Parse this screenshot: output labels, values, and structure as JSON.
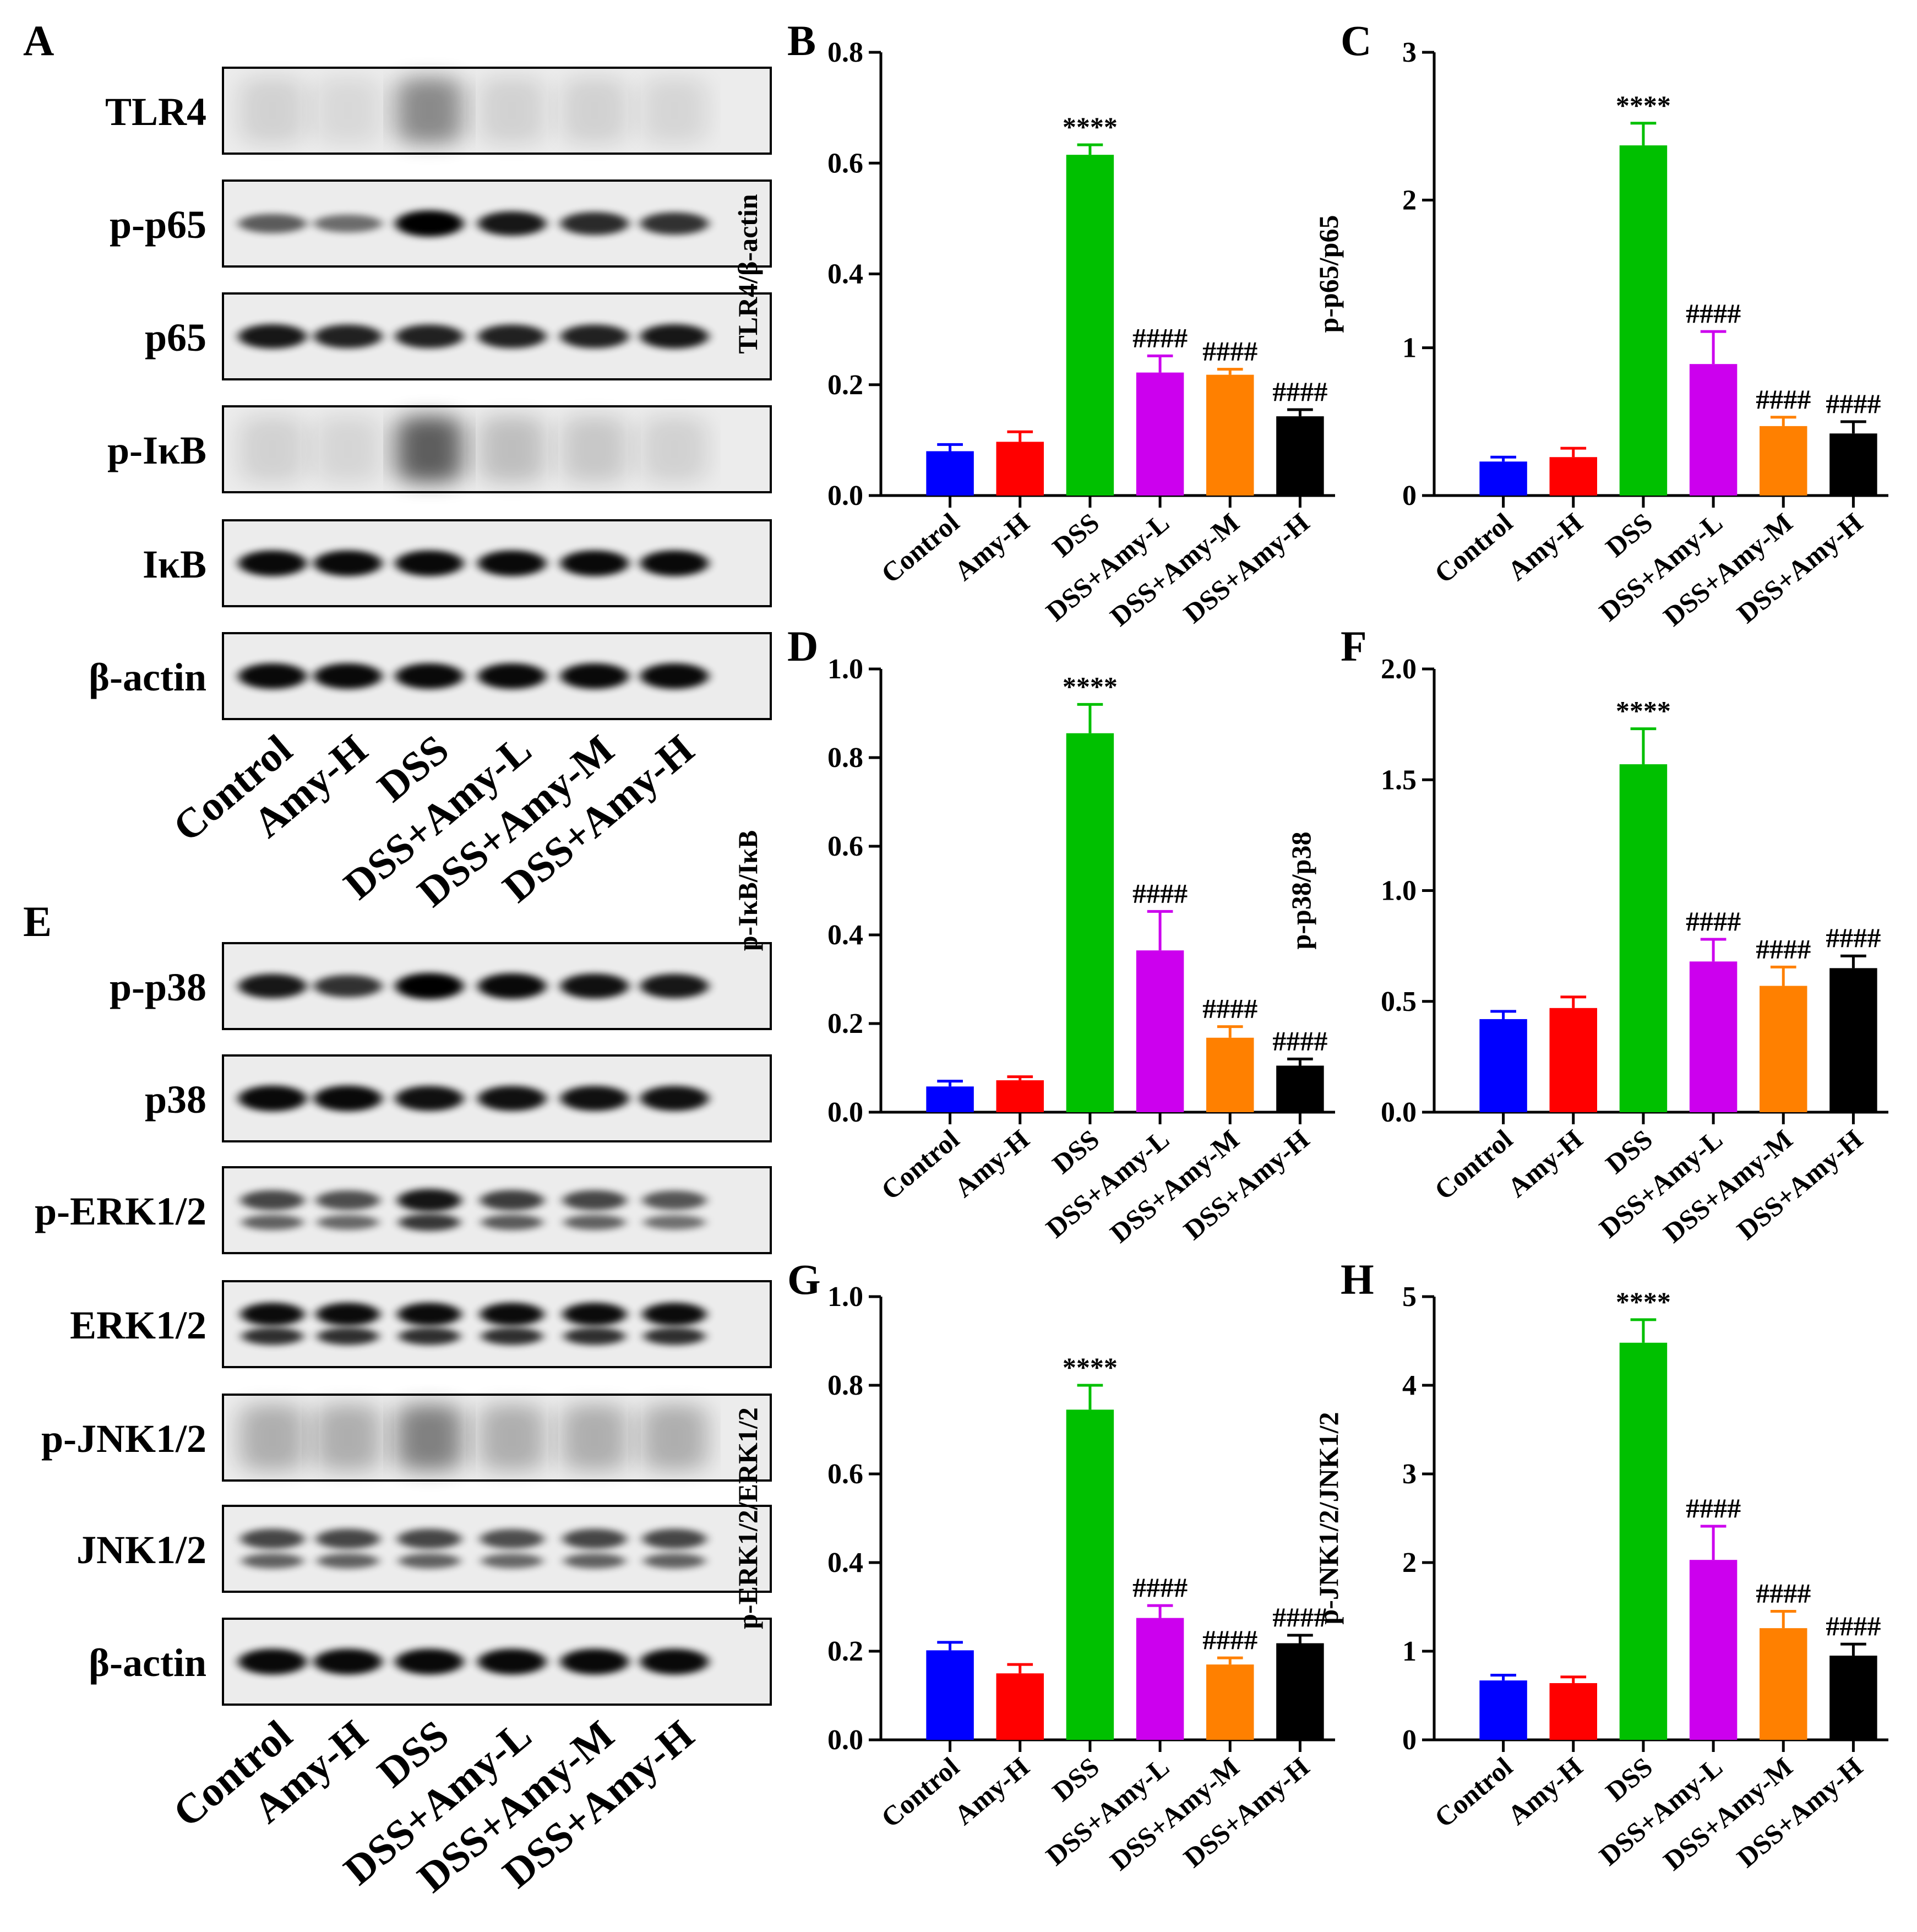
{
  "figure": {
    "groups": [
      "Control",
      "Amy-H",
      "DSS",
      "DSS+Amy-L",
      "DSS+Amy-M",
      "DSS+Amy-H"
    ],
    "colors": [
      "#0000ff",
      "#ff0000",
      "#00c000",
      "#cc00ee",
      "#ff8000",
      "#000000"
    ],
    "panel_letters": {
      "blot1": "A",
      "blot2": "E"
    },
    "blots": [
      {
        "letter": "A",
        "rows": [
          {
            "label": "TLR4",
            "style": "faint"
          },
          {
            "label": "p-p65",
            "style": "single"
          },
          {
            "label": "p65",
            "style": "single"
          },
          {
            "label": "p-IκB",
            "style": "faint"
          },
          {
            "label": "IκB",
            "style": "single"
          },
          {
            "label": "β-actin",
            "style": "single"
          }
        ],
        "intensity": [
          [
            0.15,
            0.1,
            0.55,
            0.15,
            0.15,
            0.12
          ],
          [
            0.45,
            0.35,
            1.0,
            0.85,
            0.75,
            0.7
          ],
          [
            0.85,
            0.8,
            0.8,
            0.8,
            0.8,
            0.85
          ],
          [
            0.15,
            0.12,
            0.8,
            0.25,
            0.2,
            0.15
          ],
          [
            0.95,
            0.95,
            0.95,
            0.95,
            0.95,
            0.95
          ],
          [
            0.95,
            0.95,
            0.95,
            0.95,
            0.95,
            0.95
          ]
        ]
      },
      {
        "letter": "E",
        "rows": [
          {
            "label": "p-p38",
            "style": "single"
          },
          {
            "label": "p38",
            "style": "single"
          },
          {
            "label": "p-ERK1/2",
            "style": "double"
          },
          {
            "label": "ERK1/2",
            "style": "double"
          },
          {
            "label": "p-JNK1/2",
            "style": "faint"
          },
          {
            "label": "JNK1/2",
            "style": "double"
          },
          {
            "label": "β-actin",
            "style": "single"
          }
        ],
        "intensity": [
          [
            0.85,
            0.7,
            1.0,
            0.95,
            0.9,
            0.85
          ],
          [
            0.95,
            0.95,
            0.9,
            0.9,
            0.9,
            0.9
          ],
          [
            0.65,
            0.6,
            0.95,
            0.7,
            0.65,
            0.55
          ],
          [
            1.0,
            1.0,
            1.0,
            1.0,
            1.0,
            1.0
          ],
          [
            0.35,
            0.35,
            0.6,
            0.35,
            0.35,
            0.35
          ],
          [
            0.65,
            0.65,
            0.65,
            0.6,
            0.65,
            0.65
          ],
          [
            0.95,
            0.95,
            0.95,
            0.95,
            0.95,
            0.95
          ]
        ]
      }
    ]
  },
  "chart_data": [
    {
      "panel": "B",
      "type": "bar",
      "ylabel": "TLR4/β-actin",
      "ylim": [
        0,
        0.8
      ],
      "yticks": [
        "0.0",
        "0.2",
        "0.4",
        "0.6",
        "0.8"
      ],
      "categories": [
        "Control",
        "Amy-H",
        "DSS",
        "DSS+Amy-L",
        "DSS+Amy-M",
        "DSS+Amy-H"
      ],
      "values": [
        0.08,
        0.097,
        0.615,
        0.222,
        0.218,
        0.143
      ],
      "errors": [
        0.012,
        0.018,
        0.018,
        0.03,
        0.01,
        0.012
      ],
      "annotations": [
        "",
        "",
        "****",
        "####",
        "####",
        "####"
      ]
    },
    {
      "panel": "C",
      "type": "bar",
      "ylabel": "p-p65/p65",
      "ylim": [
        0,
        3
      ],
      "yticks": [
        "0",
        "1",
        "2",
        "3"
      ],
      "categories": [
        "Control",
        "Amy-H",
        "DSS",
        "DSS+Amy-L",
        "DSS+Amy-M",
        "DSS+Amy-H"
      ],
      "values": [
        0.23,
        0.26,
        2.37,
        0.89,
        0.47,
        0.42
      ],
      "errors": [
        0.03,
        0.06,
        0.15,
        0.22,
        0.06,
        0.08
      ],
      "annotations": [
        "",
        "",
        "****",
        "####",
        "####",
        "####"
      ]
    },
    {
      "panel": "D",
      "type": "bar",
      "ylabel": "p-IκB/IκB",
      "ylim": [
        0,
        1.0
      ],
      "yticks": [
        "0.0",
        "0.2",
        "0.4",
        "0.6",
        "0.8",
        "1.0"
      ],
      "categories": [
        "Control",
        "Amy-H",
        "DSS",
        "DSS+Amy-L",
        "DSS+Amy-M",
        "DSS+Amy-H"
      ],
      "values": [
        0.058,
        0.072,
        0.855,
        0.365,
        0.168,
        0.105
      ],
      "errors": [
        0.012,
        0.008,
        0.065,
        0.088,
        0.025,
        0.015
      ],
      "annotations": [
        "",
        "",
        "****",
        "####",
        "####",
        "####"
      ]
    },
    {
      "panel": "F",
      "type": "bar",
      "ylabel": "p-p38/p38",
      "ylim": [
        0,
        2.0
      ],
      "yticks": [
        "0.0",
        "0.5",
        "1.0",
        "1.5",
        "2.0"
      ],
      "categories": [
        "Control",
        "Amy-H",
        "DSS",
        "DSS+Amy-L",
        "DSS+Amy-M",
        "DSS+Amy-H"
      ],
      "values": [
        0.42,
        0.47,
        1.57,
        0.68,
        0.57,
        0.65
      ],
      "errors": [
        0.035,
        0.05,
        0.16,
        0.1,
        0.085,
        0.055
      ],
      "annotations": [
        "",
        "",
        "****",
        "####",
        "####",
        "####"
      ]
    },
    {
      "panel": "G",
      "type": "bar",
      "ylabel": "p-ERK1/2/ERK1/2",
      "ylim": [
        0,
        1.0
      ],
      "yticks": [
        "0.0",
        "0.2",
        "0.4",
        "0.6",
        "0.8",
        "1.0"
      ],
      "categories": [
        "Control",
        "Amy-H",
        "DSS",
        "DSS+Amy-L",
        "DSS+Amy-M",
        "DSS+Amy-H"
      ],
      "values": [
        0.202,
        0.15,
        0.745,
        0.275,
        0.17,
        0.218
      ],
      "errors": [
        0.018,
        0.02,
        0.055,
        0.028,
        0.015,
        0.018
      ],
      "annotations": [
        "",
        "",
        "****",
        "####",
        "####",
        "####"
      ]
    },
    {
      "panel": "H",
      "type": "bar",
      "ylabel": "p-JNK1/2/JNK1/2",
      "ylim": [
        0,
        5
      ],
      "yticks": [
        "0",
        "1",
        "2",
        "3",
        "4",
        "5"
      ],
      "categories": [
        "Control",
        "Amy-H",
        "DSS",
        "DSS+Amy-L",
        "DSS+Amy-M",
        "DSS+Amy-H"
      ],
      "values": [
        0.67,
        0.64,
        4.48,
        2.03,
        1.26,
        0.95
      ],
      "errors": [
        0.06,
        0.07,
        0.26,
        0.38,
        0.19,
        0.13
      ],
      "annotations": [
        "",
        "",
        "****",
        "####",
        "####",
        "####"
      ]
    }
  ]
}
